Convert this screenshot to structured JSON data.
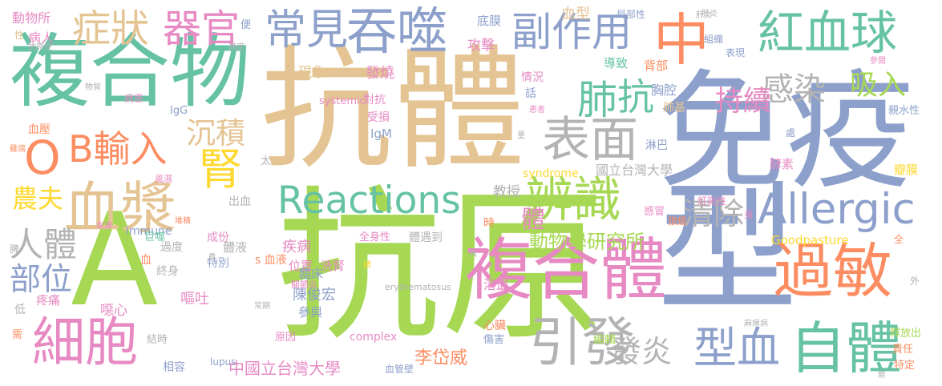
{
  "palette": {
    "green": "#a6d854",
    "tan": "#e5c494",
    "blue": "#8da0cb",
    "orange": "#fc8d62",
    "teal": "#66c2a5",
    "pink": "#e78ac3",
    "yellow": "#ffd92f",
    "gray": "#b3b3b3"
  },
  "words": [
    {
      "text": "抗原",
      "color": "green"
    },
    {
      "text": "抗體",
      "color": "tan"
    },
    {
      "text": "免疫",
      "color": "blue"
    },
    {
      "text": "型",
      "color": "blue"
    },
    {
      "text": "複合物",
      "color": "teal"
    },
    {
      "text": "A",
      "color": "green"
    },
    {
      "text": "中",
      "color": "orange"
    },
    {
      "text": "過敏",
      "color": "orange"
    },
    {
      "text": "複合體",
      "color": "pink"
    },
    {
      "text": "紅血球",
      "color": "teal"
    },
    {
      "text": "吞噬",
      "color": "blue"
    },
    {
      "text": "常見",
      "color": "blue"
    },
    {
      "text": "副作用",
      "color": "blue"
    },
    {
      "text": "表面",
      "color": "gray"
    },
    {
      "text": "引發",
      "color": "gray"
    },
    {
      "text": "血漿",
      "color": "tan"
    },
    {
      "text": "自體",
      "color": "teal"
    },
    {
      "text": "Reactions",
      "color": "teal"
    },
    {
      "text": "Allergic",
      "color": "blue"
    },
    {
      "text": "辨識",
      "color": "green"
    },
    {
      "text": "細胞",
      "color": "pink"
    },
    {
      "text": "型血",
      "color": "blue"
    },
    {
      "text": "O",
      "color": "orange"
    },
    {
      "text": "B輸入",
      "color": "orange"
    },
    {
      "text": "腎",
      "color": "yellow"
    },
    {
      "text": "肺",
      "color": "teal"
    },
    {
      "text": "抗",
      "color": "teal"
    },
    {
      "text": "症狀",
      "color": "tan"
    },
    {
      "text": "器官",
      "color": "pink"
    },
    {
      "text": "感染",
      "color": "gray"
    },
    {
      "text": "持續",
      "color": "pink"
    },
    {
      "text": "吸入",
      "color": "green"
    },
    {
      "text": "沉積",
      "color": "tan"
    },
    {
      "text": "清除",
      "color": "gray"
    },
    {
      "text": "發炎",
      "color": "gray"
    },
    {
      "text": "人體",
      "color": "gray"
    },
    {
      "text": "部位",
      "color": "blue"
    },
    {
      "text": "農夫",
      "color": "yellow"
    },
    {
      "text": "體",
      "color": "pink"
    },
    {
      "text": "動物學研究所",
      "color": "green"
    },
    {
      "text": "中國立台灣大學",
      "color": "pink"
    },
    {
      "text": "李岱威",
      "color": "orange"
    },
    {
      "text": "陳俊宏",
      "color": "blue"
    },
    {
      "text": "國立台灣大學",
      "color": "gray"
    },
    {
      "text": "教授",
      "color": "gray"
    },
    {
      "text": "Goodpasture",
      "color": "yellow"
    },
    {
      "text": "immune",
      "color": "blue"
    },
    {
      "text": "complex",
      "color": "pink"
    },
    {
      "text": "syndrome",
      "color": "yellow"
    },
    {
      "text": "systemic",
      "color": "pink"
    },
    {
      "text": "lupus",
      "color": "blue"
    },
    {
      "text": "erythematosus",
      "color": "gray"
    },
    {
      "text": "IgG",
      "color": "blue"
    },
    {
      "text": "IgM",
      "color": "blue"
    },
    {
      "text": "發燒",
      "color": "pink"
    },
    {
      "text": "現象",
      "color": "tan"
    },
    {
      "text": "攻擊",
      "color": "pink"
    },
    {
      "text": "底膜",
      "color": "blue"
    },
    {
      "text": "血型",
      "color": "tan"
    },
    {
      "text": "局部性",
      "color": "blue"
    },
    {
      "text": "導致",
      "color": "teal"
    },
    {
      "text": "背部",
      "color": "orange"
    },
    {
      "text": "胸腔",
      "color": "blue"
    },
    {
      "text": "肺基",
      "color": "tan"
    },
    {
      "text": "淋巴",
      "color": "blue"
    },
    {
      "text": "酵素",
      "color": "pink"
    },
    {
      "text": "瓣膜",
      "color": "yellow"
    },
    {
      "text": "紅斑性",
      "color": "pink"
    },
    {
      "text": "狼瘡",
      "color": "orange"
    },
    {
      "text": "感冒",
      "color": "pink"
    },
    {
      "text": "親水性",
      "color": "blue"
    },
    {
      "text": "處",
      "color": "blue"
    },
    {
      "text": "身",
      "color": "pink"
    },
    {
      "text": "全",
      "color": "orange"
    },
    {
      "text": "外",
      "color": "gray"
    },
    {
      "text": "釋放出",
      "color": "green"
    },
    {
      "text": "責任",
      "color": "orange"
    },
    {
      "text": "特定",
      "color": "orange"
    },
    {
      "text": "麻痺病",
      "color": "gray"
    },
    {
      "text": "組織",
      "color": "blue"
    },
    {
      "text": "表現",
      "color": "blue"
    },
    {
      "text": "肝炎",
      "color": "gray"
    },
    {
      "text": "參與",
      "color": "blue"
    },
    {
      "text": "編輯",
      "color": "green"
    },
    {
      "text": "心臟",
      "color": "orange"
    },
    {
      "text": "傷害",
      "color": "blue"
    },
    {
      "text": "血管壁",
      "color": "blue"
    },
    {
      "text": "相容",
      "color": "blue"
    },
    {
      "text": "結時",
      "color": "gray"
    },
    {
      "text": "原因",
      "color": "pink"
    },
    {
      "text": "常期",
      "color": "gray"
    },
    {
      "text": "終身",
      "color": "gray"
    },
    {
      "text": "嘔吐",
      "color": "pink"
    },
    {
      "text": "噁心",
      "color": "pink"
    },
    {
      "text": "疼痛",
      "color": "pink"
    },
    {
      "text": "過度",
      "color": "gray"
    },
    {
      "text": "巨噬",
      "color": "teal"
    },
    {
      "text": "血",
      "color": "orange"
    },
    {
      "text": "來源",
      "color": "pink"
    },
    {
      "text": "脾",
      "color": "gray"
    },
    {
      "text": "低",
      "color": "gray"
    },
    {
      "text": "需",
      "color": "orange"
    },
    {
      "text": "疾病",
      "color": "pink"
    },
    {
      "text": "體液",
      "color": "gray"
    },
    {
      "text": "成份",
      "color": "pink"
    },
    {
      "text": "特別",
      "color": "blue"
    },
    {
      "text": "位置",
      "color": "pink"
    },
    {
      "text": "s 血液",
      "color": "orange"
    },
    {
      "text": "洗腎",
      "color": "pink"
    },
    {
      "text": "臨床",
      "color": "blue"
    },
    {
      "text": "溶血",
      "color": "pink"
    },
    {
      "text": "全身性",
      "color": "pink"
    },
    {
      "text": "體遇到",
      "color": "gray"
    },
    {
      "text": "關節炎",
      "color": "pink"
    },
    {
      "text": "請",
      "color": "yellow"
    },
    {
      "text": "具",
      "color": "gray"
    },
    {
      "text": "時",
      "color": "orange"
    },
    {
      "text": "出血",
      "color": "gray"
    },
    {
      "text": "堆積",
      "color": "orange"
    },
    {
      "text": "風濕",
      "color": "pink"
    },
    {
      "text": "太",
      "color": "gray"
    },
    {
      "text": "受損",
      "color": "pink"
    },
    {
      "text": "對抗",
      "color": "pink"
    },
    {
      "text": "話",
      "color": "blue"
    },
    {
      "text": "情況",
      "color": "pink"
    },
    {
      "text": "患者",
      "color": "pink"
    },
    {
      "text": "病患",
      "color": "pink"
    },
    {
      "text": "物質",
      "color": "gray"
    },
    {
      "text": "血壓",
      "color": "orange"
    },
    {
      "text": "雞鴿",
      "color": "orange"
    },
    {
      "text": "動物所",
      "color": "pink"
    },
    {
      "text": "性",
      "color": "tan"
    },
    {
      "text": "病人",
      "color": "pink"
    },
    {
      "text": "抗原性",
      "color": "gray"
    },
    {
      "text": "便",
      "color": "blue"
    },
    {
      "text": "適度",
      "color": "gray"
    },
    {
      "text": "肝炎 ",
      "color": "gray"
    },
    {
      "text": "量",
      "color": "gray"
    },
    {
      "text": "類",
      "color": "gray"
    },
    {
      "text": "參閱",
      "color": "pink"
    },
    {
      "text": "費",
      "color": "gray"
    }
  ]
}
